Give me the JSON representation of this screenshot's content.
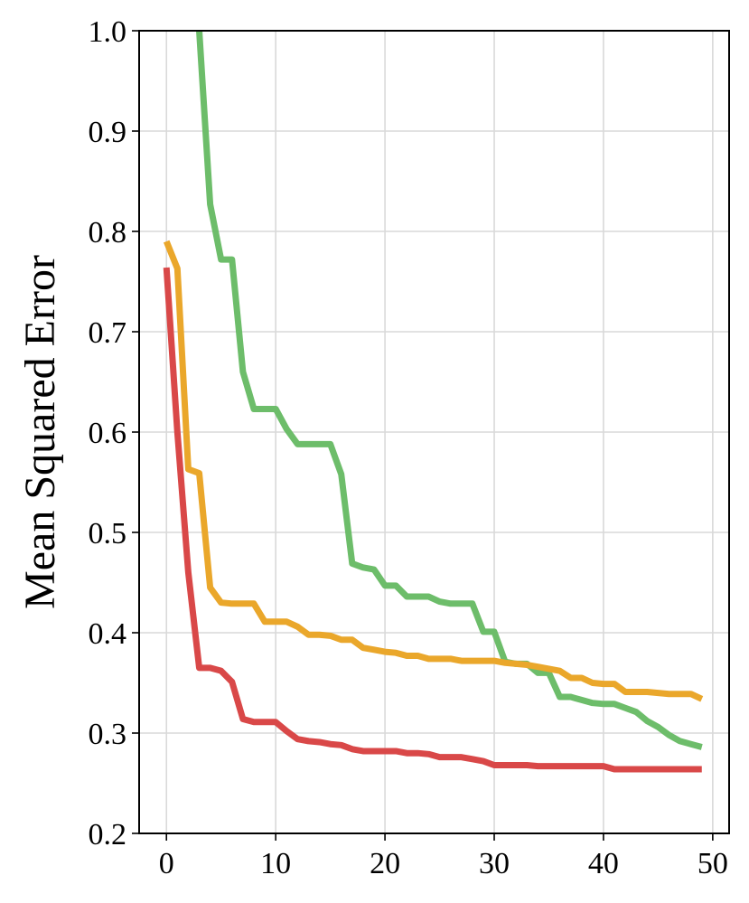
{
  "chart_data": {
    "type": "line",
    "title": "",
    "xlabel": "",
    "ylabel": "Mean Squared Error",
    "xlim": [
      -2.5,
      51.5
    ],
    "ylim": [
      0.2,
      1.0
    ],
    "xticks": [
      0,
      10,
      20,
      30,
      40,
      50
    ],
    "yticks": [
      0.2,
      0.3,
      0.4,
      0.5,
      0.6,
      0.7,
      0.8,
      0.9,
      1.0
    ],
    "xtick_labels": [
      "0",
      "10",
      "20",
      "30",
      "40",
      "50"
    ],
    "ytick_labels": [
      "0.2",
      "0.3",
      "0.4",
      "0.5",
      "0.6",
      "0.7",
      "0.8",
      "0.9",
      "1.0"
    ],
    "grid": true,
    "legend": "none",
    "series": [
      {
        "color": "#6dbd6a",
        "x": [
          3,
          4,
          5,
          6,
          7,
          8,
          9,
          10,
          11,
          12,
          13,
          14,
          15,
          16,
          17,
          18,
          19,
          20,
          21,
          22,
          23,
          24,
          25,
          26,
          27,
          28,
          29,
          30,
          31,
          32,
          33,
          34,
          35,
          36,
          37,
          38,
          39,
          40,
          41,
          42,
          43,
          44,
          45,
          46,
          47,
          48,
          49
        ],
        "y": [
          1.0,
          0.827,
          0.772,
          0.772,
          0.66,
          0.623,
          0.623,
          0.623,
          0.603,
          0.588,
          0.588,
          0.588,
          0.588,
          0.558,
          0.469,
          0.465,
          0.463,
          0.447,
          0.447,
          0.436,
          0.436,
          0.436,
          0.431,
          0.429,
          0.429,
          0.429,
          0.401,
          0.401,
          0.371,
          0.369,
          0.369,
          0.36,
          0.36,
          0.336,
          0.336,
          0.333,
          0.33,
          0.329,
          0.329,
          0.325,
          0.321,
          0.312,
          0.306,
          0.298,
          0.292,
          0.289,
          0.286
        ]
      },
      {
        "color": "#eaa72b",
        "x": [
          0,
          1,
          2,
          3,
          4,
          5,
          6,
          7,
          8,
          9,
          10,
          11,
          12,
          13,
          14,
          15,
          16,
          17,
          18,
          19,
          20,
          21,
          22,
          23,
          24,
          25,
          26,
          27,
          28,
          29,
          30,
          31,
          32,
          33,
          34,
          35,
          36,
          37,
          38,
          39,
          40,
          41,
          42,
          43,
          44,
          45,
          46,
          47,
          48,
          49
        ],
        "y": [
          0.79,
          0.763,
          0.563,
          0.559,
          0.445,
          0.43,
          0.429,
          0.429,
          0.429,
          0.411,
          0.411,
          0.411,
          0.406,
          0.398,
          0.398,
          0.397,
          0.393,
          0.393,
          0.385,
          0.383,
          0.381,
          0.38,
          0.377,
          0.377,
          0.374,
          0.374,
          0.374,
          0.372,
          0.372,
          0.372,
          0.372,
          0.37,
          0.369,
          0.368,
          0.366,
          0.364,
          0.362,
          0.355,
          0.355,
          0.35,
          0.349,
          0.349,
          0.341,
          0.341,
          0.341,
          0.34,
          0.339,
          0.339,
          0.339,
          0.334
        ]
      },
      {
        "color": "#d94848",
        "x": [
          0,
          1,
          2,
          3,
          4,
          5,
          6,
          7,
          8,
          9,
          10,
          11,
          12,
          13,
          14,
          15,
          16,
          17,
          18,
          19,
          20,
          21,
          22,
          23,
          24,
          25,
          26,
          27,
          28,
          29,
          30,
          31,
          32,
          33,
          34,
          35,
          36,
          37,
          38,
          39,
          40,
          41,
          42,
          43,
          44,
          45,
          46,
          47,
          48,
          49
        ],
        "y": [
          0.764,
          0.6,
          0.46,
          0.365,
          0.365,
          0.362,
          0.351,
          0.314,
          0.311,
          0.311,
          0.311,
          0.302,
          0.294,
          0.292,
          0.291,
          0.289,
          0.288,
          0.284,
          0.282,
          0.282,
          0.282,
          0.282,
          0.28,
          0.28,
          0.279,
          0.276,
          0.276,
          0.276,
          0.274,
          0.272,
          0.268,
          0.268,
          0.268,
          0.268,
          0.267,
          0.267,
          0.267,
          0.267,
          0.267,
          0.267,
          0.267,
          0.264,
          0.264,
          0.264,
          0.264,
          0.264,
          0.264,
          0.264,
          0.264,
          0.264
        ]
      }
    ]
  }
}
